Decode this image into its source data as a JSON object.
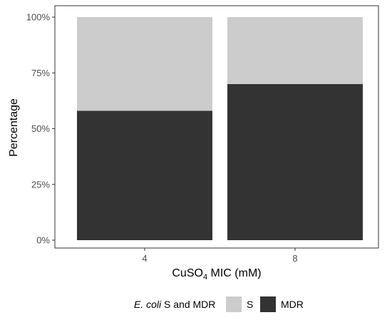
{
  "chart_data": {
    "type": "bar",
    "stacked": true,
    "categories": [
      "4",
      "8"
    ],
    "series": [
      {
        "name": "MDR",
        "values": [
          58,
          70
        ],
        "color": "#333333"
      },
      {
        "name": "S",
        "values": [
          42,
          30
        ],
        "color": "#cccccc"
      }
    ],
    "xlabel": {
      "main": "CuSO",
      "sub": "4",
      "rest": " MIC (mM)"
    },
    "ylabel": "Percentage",
    "yticks": [
      "0%",
      "25%",
      "50%",
      "75%",
      "100%"
    ],
    "ytick_values": [
      0,
      25,
      50,
      75,
      100
    ],
    "ylim": [
      0,
      100
    ],
    "grid": false,
    "legend": {
      "position": "bottom",
      "title": {
        "italic": "E. coli",
        "rest": " S and MDR"
      },
      "entries": [
        {
          "label": "S",
          "color": "#cccccc"
        },
        {
          "label": "MDR",
          "color": "#333333"
        }
      ]
    }
  }
}
